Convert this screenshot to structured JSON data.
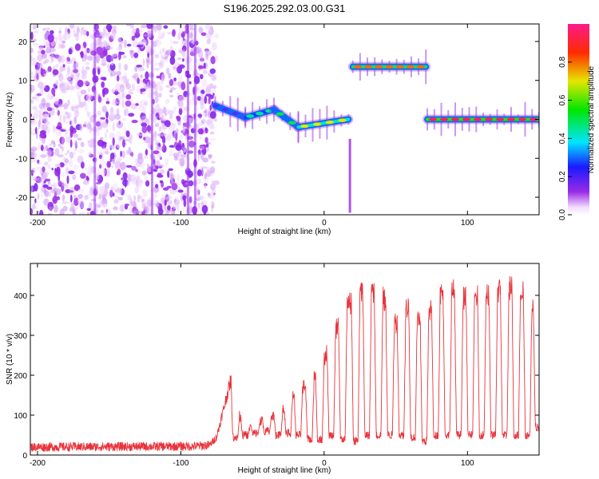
{
  "title": "S196.2025.292.03.00.G31",
  "chart_data": [
    {
      "type": "heatmap",
      "name": "spectrogram",
      "xlabel": "Height of straight line (km)",
      "ylabel": "Frequency (Hz)",
      "xlim": [
        -205,
        150
      ],
      "ylim": [
        -24.5,
        24.5
      ],
      "xticks": [
        -200,
        -100,
        0,
        100
      ],
      "yticks": [
        -20,
        -10,
        0,
        10,
        20
      ],
      "colorbar": {
        "label": "Normalized spectral amplitude",
        "range": [
          0,
          1
        ],
        "ticks": [
          0.0,
          0.2,
          0.4,
          0.6,
          0.8
        ]
      },
      "noise_region": {
        "x_from": -205,
        "x_to": -75,
        "level": 0.08
      },
      "line_segments": [
        {
          "x_from": -76,
          "x_to": -55,
          "freq_start": 3.5,
          "freq_end": 0.5,
          "amplitude": 0.3
        },
        {
          "x_from": -55,
          "x_to": -35,
          "freq_start": 0.5,
          "freq_end": 2.5,
          "amplitude": 0.45
        },
        {
          "x_from": -35,
          "x_to": -18,
          "freq_start": 2.5,
          "freq_end": -2.0,
          "amplitude": 0.5
        },
        {
          "x_from": -18,
          "x_to": 17,
          "freq_start": -2.0,
          "freq_end": 0.0,
          "amplitude": 0.7
        },
        {
          "x_from": 20,
          "x_to": 71,
          "freq_start": 13.5,
          "freq_end": 13.5,
          "amplitude": 0.8
        },
        {
          "x_from": 72,
          "x_to": 150,
          "freq_start": 0.0,
          "freq_end": 0.0,
          "amplitude": 0.95
        }
      ]
    },
    {
      "type": "line",
      "name": "snr",
      "xlabel": "Height of straight line (km)",
      "ylabel": "SNR (10 * v/v)",
      "xlim": [
        -205,
        150
      ],
      "ylim": [
        0,
        480
      ],
      "xticks": [
        -200,
        -100,
        0,
        100
      ],
      "yticks": [
        0,
        100,
        200,
        300,
        400
      ],
      "color": "#e8333a",
      "profile": [
        {
          "x": -205,
          "y": 20
        },
        {
          "x": -90,
          "y": 22
        },
        {
          "x": -80,
          "y": 25
        },
        {
          "x": -75,
          "y": 45
        },
        {
          "x": -65,
          "y": 190
        },
        {
          "x": -60,
          "y": 110
        },
        {
          "x": -55,
          "y": 60
        },
        {
          "x": -50,
          "y": 75
        },
        {
          "x": -40,
          "y": 90
        },
        {
          "x": -30,
          "y": 110
        },
        {
          "x": -20,
          "y": 160
        },
        {
          "x": -10,
          "y": 180
        },
        {
          "x": 0,
          "y": 240
        },
        {
          "x": 10,
          "y": 330
        },
        {
          "x": 20,
          "y": 390
        },
        {
          "x": 30,
          "y": 420
        },
        {
          "x": 40,
          "y": 400
        },
        {
          "x": 50,
          "y": 330
        },
        {
          "x": 60,
          "y": 380
        },
        {
          "x": 70,
          "y": 330
        },
        {
          "x": 80,
          "y": 400
        },
        {
          "x": 90,
          "y": 410
        },
        {
          "x": 100,
          "y": 390
        },
        {
          "x": 110,
          "y": 400
        },
        {
          "x": 120,
          "y": 410
        },
        {
          "x": 130,
          "y": 420
        },
        {
          "x": 140,
          "y": 410
        },
        {
          "x": 150,
          "y": 360
        }
      ],
      "dropouts": [
        {
          "x": -62,
          "y": 35
        },
        {
          "x": -55,
          "y": 40
        },
        {
          "x": -48,
          "y": 45
        },
        {
          "x": -40,
          "y": 50
        },
        {
          "x": -32,
          "y": 40
        },
        {
          "x": -25,
          "y": 45
        },
        {
          "x": -18,
          "y": 40
        },
        {
          "x": -10,
          "y": 30
        },
        {
          "x": -3,
          "y": 30
        },
        {
          "x": 5,
          "y": 40
        },
        {
          "x": 13,
          "y": 30
        },
        {
          "x": 22,
          "y": 25
        },
        {
          "x": 30,
          "y": 40
        },
        {
          "x": 38,
          "y": 40
        },
        {
          "x": 46,
          "y": 40
        },
        {
          "x": 54,
          "y": 40
        },
        {
          "x": 62,
          "y": 35
        },
        {
          "x": 70,
          "y": 25
        },
        {
          "x": 78,
          "y": 40
        },
        {
          "x": 86,
          "y": 40
        },
        {
          "x": 94,
          "y": 40
        },
        {
          "x": 102,
          "y": 40
        },
        {
          "x": 110,
          "y": 40
        },
        {
          "x": 118,
          "y": 40
        },
        {
          "x": 126,
          "y": 40
        },
        {
          "x": 134,
          "y": 40
        },
        {
          "x": 142,
          "y": 40
        },
        {
          "x": 149,
          "y": 60
        }
      ]
    }
  ]
}
